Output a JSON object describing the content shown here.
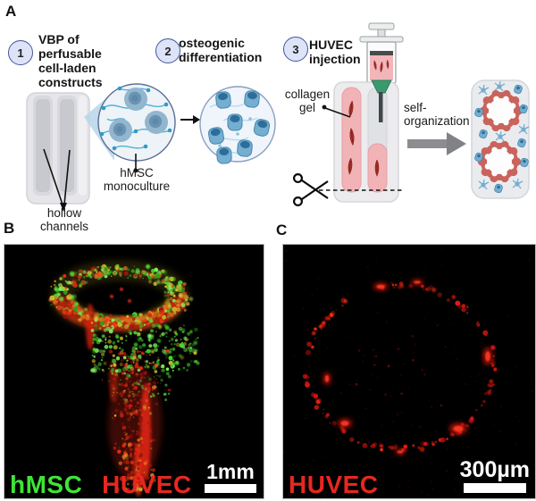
{
  "panel_a": {
    "letter": "A",
    "steps": [
      {
        "num": "1",
        "label": "VBP of\nperfusable\ncell-laden\nconstructs"
      },
      {
        "num": "2",
        "label": "osteogenic\ndifferentiation"
      },
      {
        "num": "3",
        "label": "HUVEC\ninjection"
      }
    ],
    "labels": {
      "hollow_channels": "hollow\nchannels",
      "hmsc_monoculture": "hMSC\nmonoculture",
      "collagen_gel": "collagen\ngel",
      "self_organization": "self-\norganization"
    }
  },
  "panel_b": {
    "letter": "B",
    "legend": [
      {
        "label": "hMSC",
        "color": "#3ce636"
      },
      {
        "label": "HUVEC",
        "color": "#e8271f"
      }
    ],
    "scale_label": "1mm"
  },
  "panel_c": {
    "letter": "C",
    "legend": [
      {
        "label": "HUVEC",
        "color": "#e8271f"
      }
    ],
    "scale_label": "300µm"
  },
  "microscopy": {
    "greens": [
      "#2f9e1c",
      "#46d92e",
      "#82f060"
    ],
    "reds": [
      "#8f1209",
      "#c61d10",
      "#ff2e17"
    ],
    "orange": "#e06b1f",
    "yellow": "#d8c12a"
  },
  "illustration_colors": {
    "badge_fill": "#dde4f8",
    "badge_border": "#46549c",
    "cell_blue": "#74aed1",
    "cell_nucleus": "#2d6d9b",
    "collagen_pink": "#f2b3b6",
    "vessel_red": "#c9635c",
    "construct_gray": "#e9e9ec",
    "syringe_green": "#3a9a6e"
  }
}
